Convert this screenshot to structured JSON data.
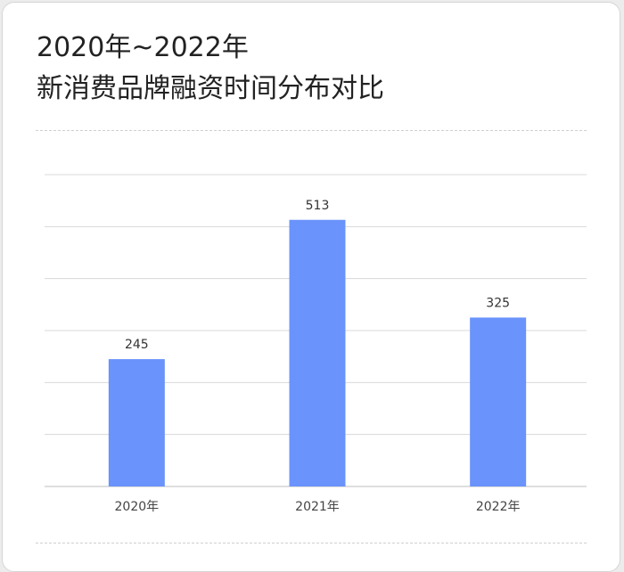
{
  "title": {
    "line1": "2020年~2022年",
    "line2": "新消费品牌融资时间分布对比"
  },
  "colors": {
    "bar": "#6a93fb",
    "grid": "#d8d8d8",
    "background": "#ffffff"
  },
  "chart_data": {
    "type": "bar",
    "title": "2020年~2022年 新消费品牌融资时间分布对比",
    "categories": [
      "2020年",
      "2021年",
      "2022年"
    ],
    "values": [
      245,
      513,
      325
    ],
    "xlabel": "",
    "ylabel": "",
    "ylim": [
      0,
      600
    ],
    "grid": true,
    "legend": "none"
  }
}
